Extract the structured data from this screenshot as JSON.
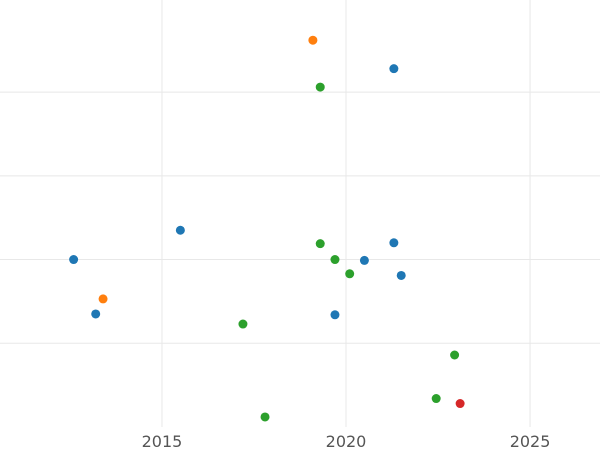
{
  "chart_data": {
    "type": "scatter",
    "title": "",
    "xlabel": "",
    "ylabel": "",
    "x_ticks": [
      2015,
      2020,
      2025
    ],
    "xlim": [
      2010.6,
      2026.9
    ],
    "ylim": [
      0,
      5.1
    ],
    "y_gridlines": [
      1,
      2,
      3,
      4
    ],
    "grid": true,
    "legend": "none",
    "series": [
      {
        "color": "#1f77b4",
        "points": [
          {
            "x": 2012.6,
            "y": 2.0
          },
          {
            "x": 2013.2,
            "y": 1.35
          },
          {
            "x": 2015.5,
            "y": 2.35
          },
          {
            "x": 2019.7,
            "y": 1.34
          },
          {
            "x": 2020.5,
            "y": 1.99
          },
          {
            "x": 2021.3,
            "y": 4.28
          },
          {
            "x": 2021.3,
            "y": 2.2
          },
          {
            "x": 2021.5,
            "y": 1.81
          }
        ]
      },
      {
        "color": "#ff7f0e",
        "points": [
          {
            "x": 2013.4,
            "y": 1.53
          },
          {
            "x": 2019.1,
            "y": 4.62
          }
        ]
      },
      {
        "color": "#2ca02c",
        "points": [
          {
            "x": 2017.2,
            "y": 1.23
          },
          {
            "x": 2017.8,
            "y": 0.12
          },
          {
            "x": 2019.3,
            "y": 4.06
          },
          {
            "x": 2019.3,
            "y": 2.19
          },
          {
            "x": 2019.7,
            "y": 2.0
          },
          {
            "x": 2020.1,
            "y": 1.83
          },
          {
            "x": 2022.45,
            "y": 0.34
          },
          {
            "x": 2022.95,
            "y": 0.86
          }
        ]
      },
      {
        "color": "#d62728",
        "points": [
          {
            "x": 2023.1,
            "y": 0.28
          }
        ]
      }
    ]
  }
}
